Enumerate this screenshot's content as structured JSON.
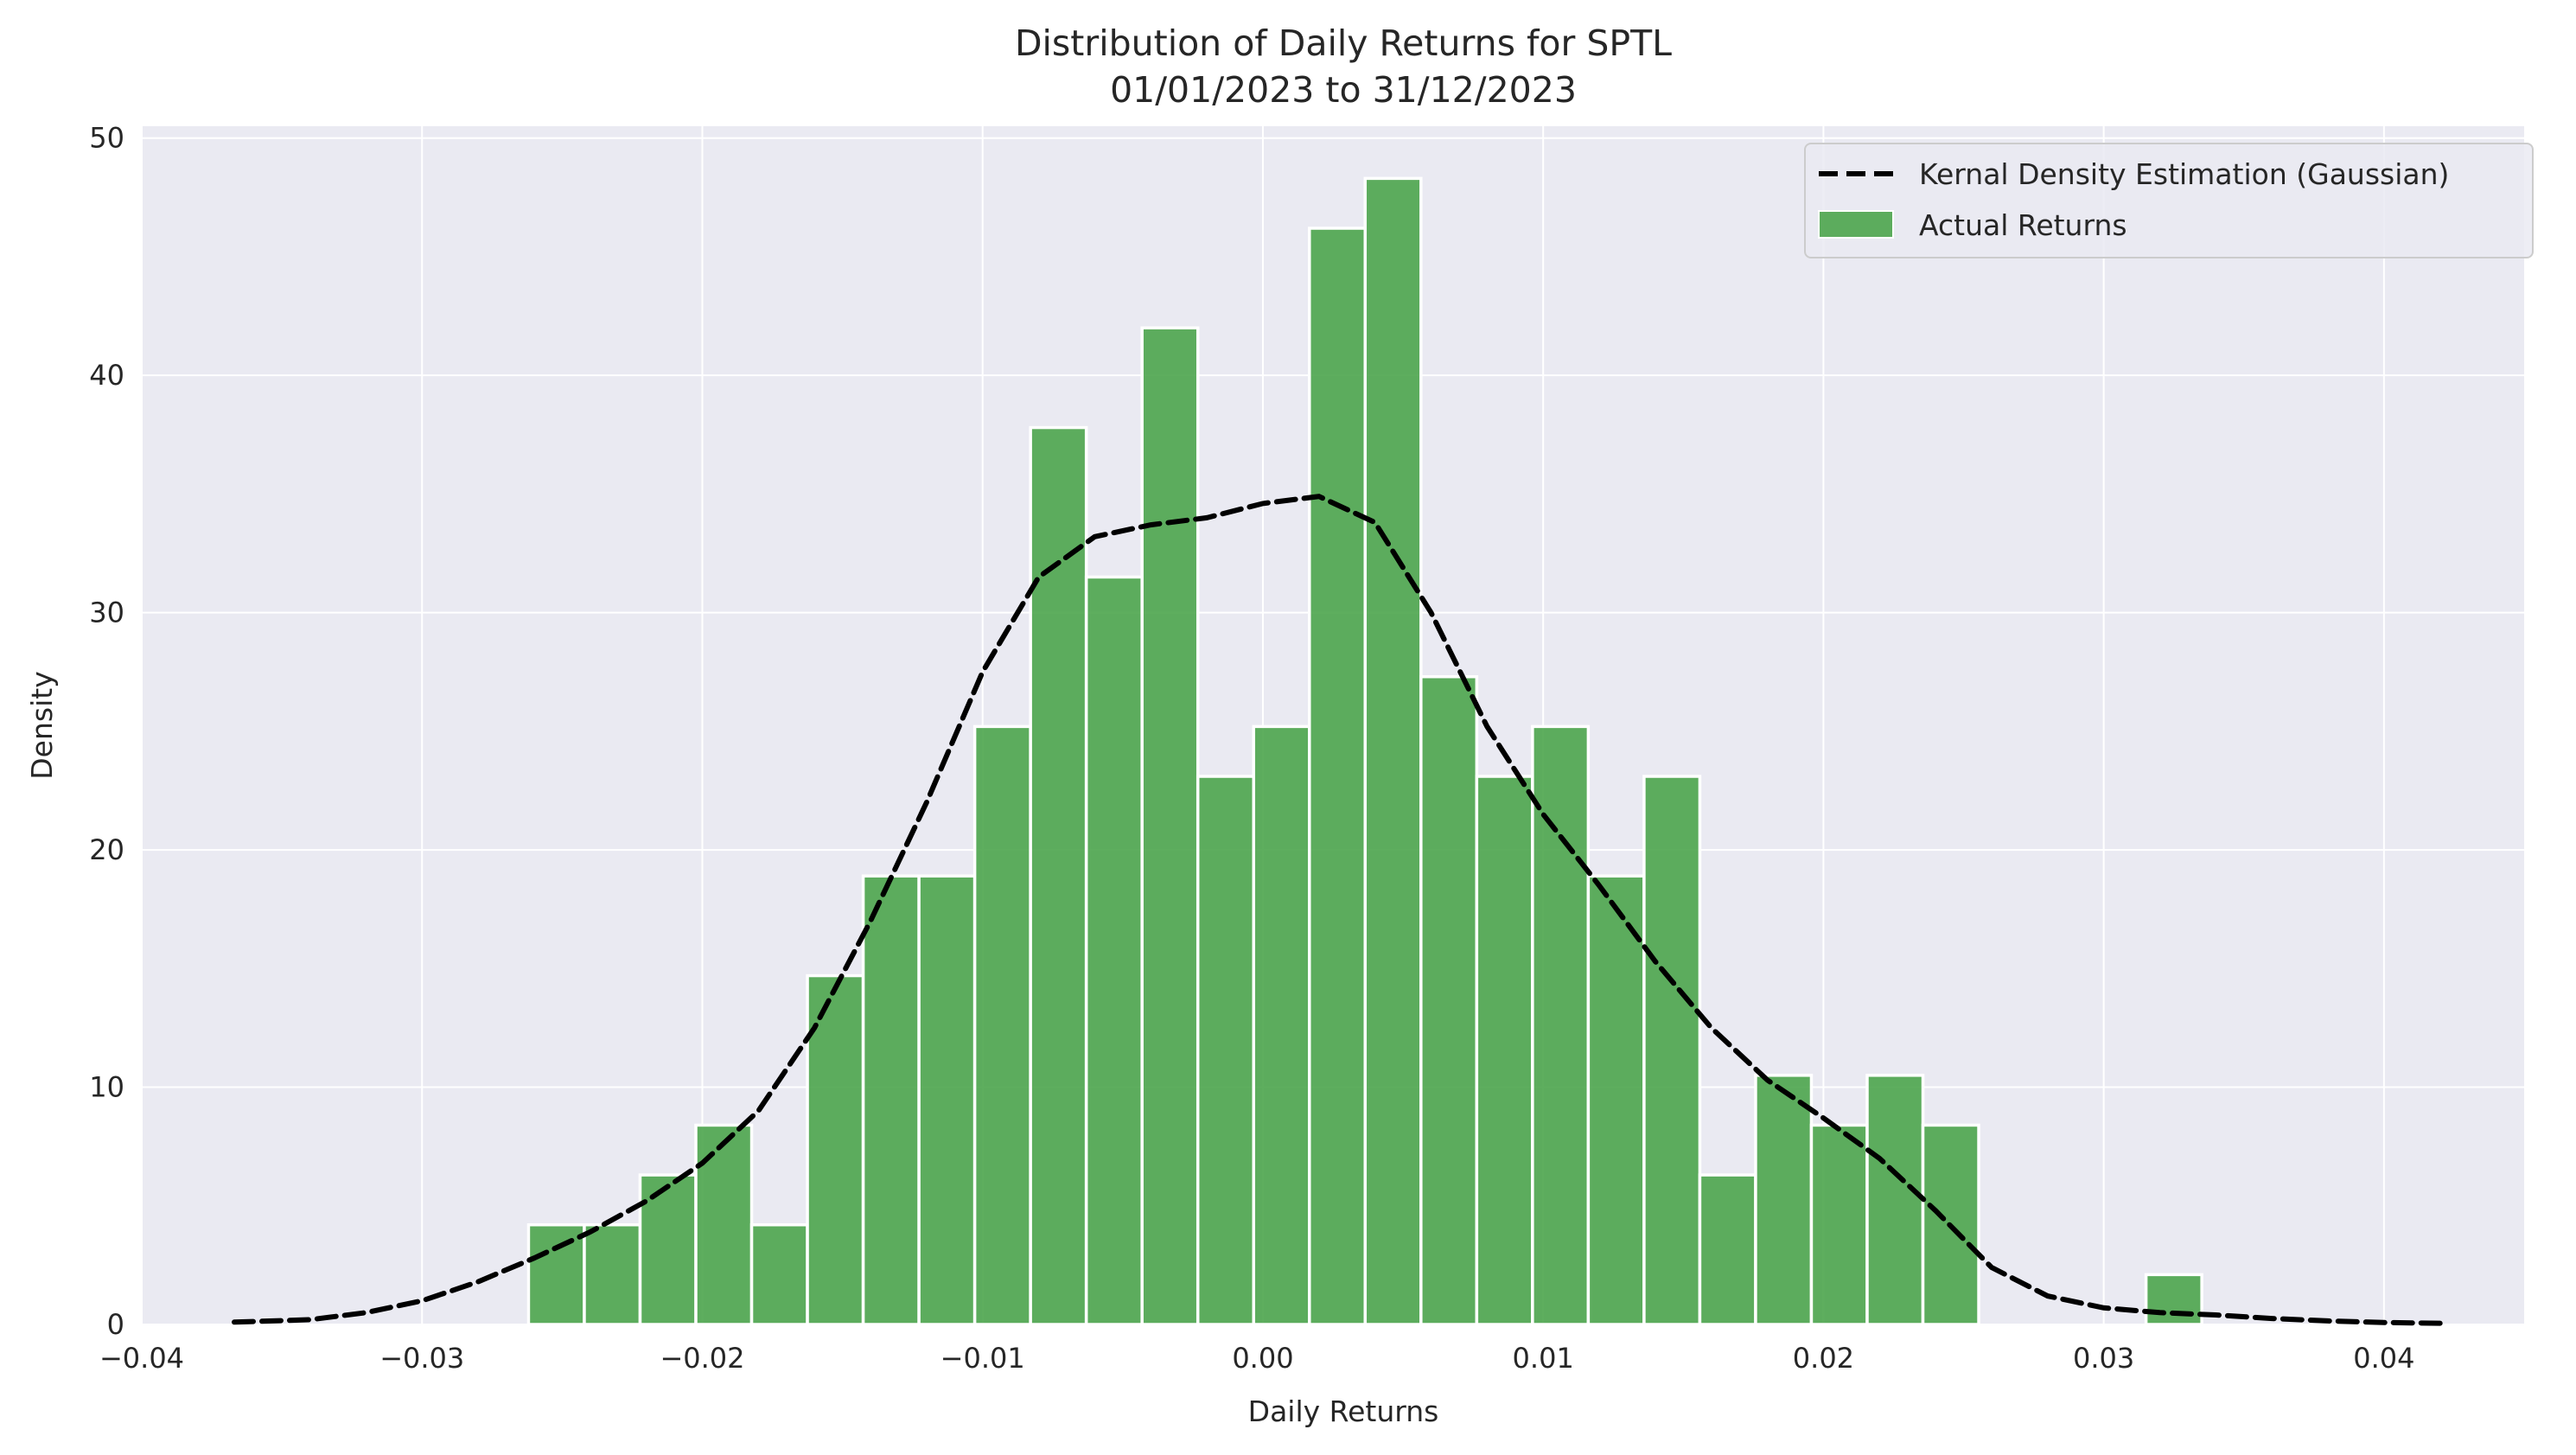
{
  "chart_data": {
    "type": "bar",
    "title": "Distribution of Daily Returns for SPTL",
    "subtitle": "01/01/2023 to 31/12/2023",
    "xlabel": "Daily Returns",
    "ylabel": "Density",
    "xlim": [
      -0.04,
      0.045
    ],
    "ylim": [
      0,
      50.5
    ],
    "x_ticks": [
      -0.04,
      -0.03,
      -0.02,
      -0.01,
      0.0,
      0.01,
      0.02,
      0.03,
      0.04
    ],
    "x_tick_labels": [
      "−0.04",
      "−0.03",
      "−0.02",
      "−0.01",
      "0.00",
      "0.01",
      "0.02",
      "0.03",
      "0.04"
    ],
    "y_ticks": [
      0,
      10,
      20,
      30,
      40,
      50
    ],
    "y_tick_labels": [
      "0",
      "10",
      "20",
      "30",
      "40",
      "50"
    ],
    "grid": true,
    "legend_position": "top-right",
    "series": [
      {
        "name": "Actual Returns",
        "kind": "histogram",
        "color": "#4da54d",
        "bin_start": -0.0262,
        "bin_width": 0.00199,
        "values": [
          4.2,
          4.2,
          6.3,
          8.4,
          4.2,
          14.7,
          18.9,
          18.9,
          25.2,
          37.8,
          31.5,
          42.0,
          23.1,
          25.2,
          46.2,
          48.3,
          27.3,
          23.1,
          25.2,
          18.9,
          23.1,
          6.3,
          10.5,
          8.4,
          10.5,
          8.4,
          0,
          0,
          0,
          2.1
        ]
      },
      {
        "name": "Kernal Density Estimation (Gaussian)",
        "kind": "line",
        "style": "dashed",
        "color": "#000000",
        "x": [
          -0.0367,
          -0.034,
          -0.032,
          -0.03,
          -0.028,
          -0.026,
          -0.024,
          -0.022,
          -0.02,
          -0.018,
          -0.016,
          -0.014,
          -0.012,
          -0.01,
          -0.008,
          -0.006,
          -0.004,
          -0.002,
          0.0,
          0.002,
          0.004,
          0.006,
          0.008,
          0.01,
          0.012,
          0.014,
          0.016,
          0.018,
          0.02,
          0.022,
          0.024,
          0.026,
          0.028,
          0.03,
          0.032,
          0.034,
          0.036,
          0.038,
          0.04,
          0.042
        ],
        "y": [
          0.1,
          0.2,
          0.5,
          1.0,
          1.8,
          2.8,
          3.9,
          5.2,
          6.8,
          9.0,
          12.5,
          17.0,
          22.0,
          27.5,
          31.5,
          33.2,
          33.7,
          34.0,
          34.6,
          34.9,
          33.8,
          30.0,
          25.2,
          21.5,
          18.5,
          15.3,
          12.5,
          10.3,
          8.7,
          7.0,
          4.8,
          2.4,
          1.2,
          0.7,
          0.5,
          0.4,
          0.25,
          0.15,
          0.08,
          0.05
        ]
      }
    ]
  }
}
